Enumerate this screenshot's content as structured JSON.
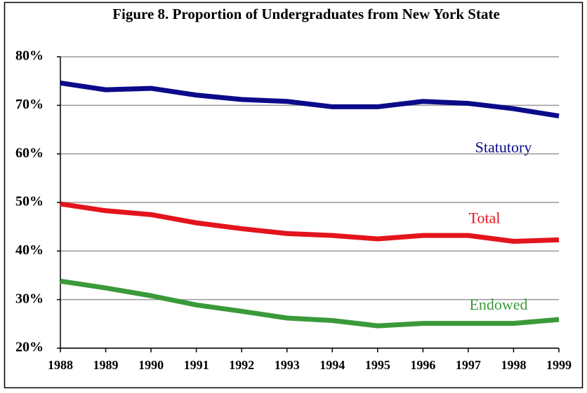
{
  "chart_data": {
    "type": "line",
    "title": "Figure 8. Proportion of Undergraduates from New York State",
    "x": [
      1988,
      1989,
      1990,
      1991,
      1992,
      1993,
      1994,
      1995,
      1996,
      1997,
      1998,
      1999
    ],
    "series": [
      {
        "name": "Statutory",
        "color": "#0b0b8a",
        "values": [
          74.6,
          73.2,
          73.5,
          72.1,
          71.2,
          70.8,
          69.7,
          69.7,
          70.8,
          70.4,
          69.3,
          67.8
        ]
      },
      {
        "name": "Total",
        "color": "#e3141c",
        "values": [
          49.7,
          48.3,
          47.5,
          45.8,
          44.6,
          43.6,
          43.2,
          42.5,
          43.2,
          43.2,
          42.0,
          42.3
        ]
      },
      {
        "name": "Endowed",
        "color": "#3a9a3a",
        "values": [
          33.8,
          32.4,
          30.8,
          28.9,
          27.6,
          26.2,
          25.7,
          24.6,
          25.1,
          25.1,
          25.1,
          25.9
        ]
      }
    ],
    "xlim": [
      1988,
      1999
    ],
    "xticks": [
      1988,
      1989,
      1990,
      1991,
      1992,
      1993,
      1994,
      1995,
      1996,
      1997,
      1998,
      1999
    ],
    "ylim": [
      20,
      80
    ],
    "yticks": [
      {
        "value": 20,
        "label": "20%"
      },
      {
        "value": 30,
        "label": "30%"
      },
      {
        "value": 40,
        "label": "40%"
      },
      {
        "value": 50,
        "label": "50%"
      },
      {
        "value": 60,
        "label": "60%"
      },
      {
        "value": 70,
        "label": "70%"
      },
      {
        "value": 80,
        "label": "80%"
      }
    ],
    "grid": true
  }
}
